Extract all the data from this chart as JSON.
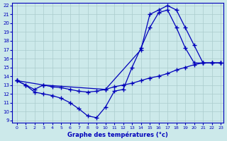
{
  "xlabel": "Graphe des températures (°c)",
  "xlim": [
    -0.5,
    23.3
  ],
  "ylim": [
    8.7,
    22.3
  ],
  "xticks": [
    0,
    1,
    2,
    3,
    4,
    5,
    6,
    7,
    8,
    9,
    10,
    11,
    12,
    13,
    14,
    15,
    16,
    17,
    18,
    19,
    20,
    21,
    22,
    23
  ],
  "yticks": [
    9,
    10,
    11,
    12,
    13,
    14,
    15,
    16,
    17,
    18,
    19,
    20,
    21,
    22
  ],
  "background_color": "#cce9ea",
  "grid_color": "#aacccc",
  "line_color": "#0000bb",
  "line1_x": [
    0,
    1,
    2,
    3,
    4,
    5,
    6,
    7,
    8,
    9,
    10,
    11,
    12,
    13,
    14,
    15,
    16,
    17,
    18,
    19,
    20,
    21,
    22,
    23
  ],
  "line1_y": [
    13.5,
    13.0,
    12.5,
    13.0,
    12.8,
    12.7,
    12.5,
    12.3,
    12.2,
    12.3,
    12.5,
    12.8,
    13.0,
    13.2,
    13.5,
    13.8,
    14.0,
    14.3,
    14.7,
    15.0,
    15.3,
    15.5,
    15.5,
    15.5
  ],
  "line2_x": [
    0,
    1,
    2,
    3,
    4,
    5,
    6,
    7,
    8,
    9,
    10,
    11,
    12,
    13,
    14,
    15,
    16,
    17,
    18,
    19,
    20,
    21,
    22,
    23
  ],
  "line2_y": [
    13.5,
    13.0,
    12.2,
    12.0,
    11.8,
    11.5,
    11.0,
    10.3,
    9.5,
    9.3,
    10.5,
    12.3,
    12.5,
    15.0,
    17.2,
    19.5,
    21.2,
    21.5,
    19.5,
    17.2,
    15.5,
    15.5,
    15.5,
    15.5
  ],
  "line3_x": [
    0,
    3,
    10,
    14,
    15,
    16,
    17,
    18,
    19,
    20,
    21,
    22,
    23
  ],
  "line3_y": [
    13.5,
    13.0,
    12.5,
    17.0,
    21.0,
    21.5,
    22.0,
    21.5,
    19.5,
    17.5,
    15.5,
    15.5,
    15.5
  ]
}
